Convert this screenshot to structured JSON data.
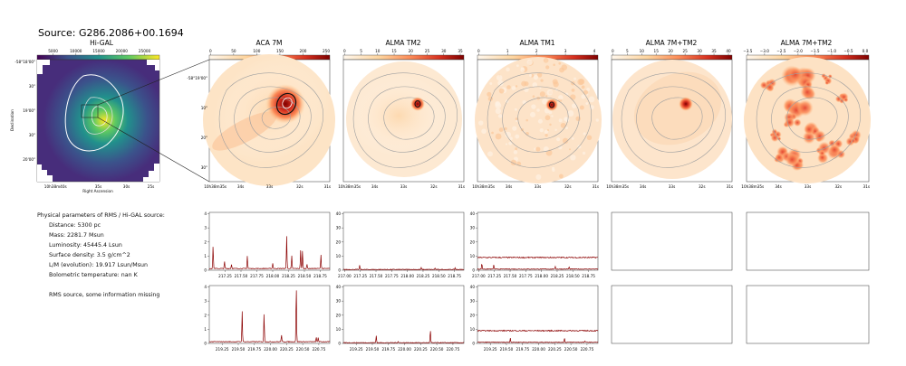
{
  "title": "Source: G286.2086+00.1694",
  "colors": {
    "viridis_dark": "#440154",
    "viridis_mid": "#21918c",
    "viridis_light": "#fde725",
    "spectrum_line": "#8b0000",
    "panel_bg": "#fdf3e6",
    "contour": "#a0a0a0"
  },
  "panels": [
    {
      "id": "higal",
      "title": "Hi-GAL",
      "colormap": "viridis",
      "colorbar_ticks": [
        "5000",
        "10000",
        "15000",
        "20000",
        "25000"
      ],
      "y_ticks": [
        "-58°18'00\"",
        "30\"",
        "19'00\"",
        "30\"",
        "20'00\""
      ],
      "x_ticks": [
        "10h38m40s",
        "35s",
        "30s",
        "25s"
      ],
      "xlabel": "Right Ascension",
      "ylabel": "Declination"
    },
    {
      "id": "aca7m",
      "title": "ACA 7M",
      "colormap": "OrRd",
      "colorbar_ticks": [
        "0",
        "50",
        "100",
        "150",
        "200",
        "250"
      ],
      "y_ticks": [
        "-58°19'00\"",
        "10\"",
        "20\"",
        "30\""
      ],
      "x_ticks": [
        "10h38m35s",
        "34s",
        "33s",
        "32s",
        "31s"
      ]
    },
    {
      "id": "tm2",
      "title": "ALMA TM2",
      "colormap": "OrRd",
      "colorbar_ticks": [
        "0",
        "5",
        "10",
        "15",
        "20",
        "25",
        "30",
        "35"
      ],
      "x_ticks": [
        "10h38m35s",
        "34s",
        "33s",
        "32s",
        "31s"
      ]
    },
    {
      "id": "tm1",
      "title": "ALMA TM1",
      "colormap": "OrRd",
      "colorbar_ticks": [
        "0",
        "1",
        "2",
        "3",
        "4"
      ],
      "x_ticks": [
        "10h38m35s",
        "34s",
        "33s",
        "32s",
        "31s"
      ]
    },
    {
      "id": "tm2_7m",
      "title": "ALMA 7M+TM2",
      "colormap": "OrRd",
      "colorbar_ticks": [
        "0",
        "5",
        "10",
        "15",
        "20",
        "25",
        "30",
        "35",
        "40"
      ],
      "x_ticks": [
        "10h38m35s",
        "34s",
        "33s",
        "32s",
        "31s"
      ]
    },
    {
      "id": "log_tm2_7m",
      "title": "ALMA 7M+TM2",
      "colormap": "OrRd",
      "colorbar_ticks": [
        "−3.5",
        "−3.0",
        "−2.5",
        "−2.0",
        "−1.5",
        "−1.0",
        "−0.5",
        "0.0"
      ],
      "x_ticks": [
        "10h38m35s",
        "34s",
        "33s",
        "32s",
        "31s"
      ]
    }
  ],
  "info": {
    "header": "Physical parameters of RMS / Hi-GAL source:",
    "lines": [
      "Distance: 5300 pc",
      "Mass: 2281.7 Msun",
      "Luminosity: 45445.4 Lsun",
      "Surface density: 3.5 g/cm^2",
      "L/M (evolution): 19.917 Lsun/Msun",
      "Bolometric temperature: nan K"
    ],
    "note": "RMS source, some information missing"
  },
  "chart_data": [
    {
      "type": "line",
      "panel": "aca7m_spw_low",
      "y_ticks": [
        "0",
        "1",
        "2",
        "3",
        "4"
      ],
      "ylim": [
        0,
        4.1
      ],
      "x_ticks": [
        "217.25",
        "217.50",
        "217.75",
        "218.00",
        "218.25",
        "218.50",
        "218.75"
      ],
      "xlim": [
        217.0,
        218.9
      ],
      "baseline": 0.12,
      "peaks": [
        [
          217.06,
          1.6
        ],
        [
          217.24,
          0.5
        ],
        [
          217.35,
          0.3
        ],
        [
          217.6,
          0.9
        ],
        [
          218.0,
          0.4
        ],
        [
          218.22,
          2.3
        ],
        [
          218.3,
          0.9
        ],
        [
          218.44,
          1.3
        ],
        [
          218.47,
          1.3
        ],
        [
          218.54,
          0.3
        ],
        [
          218.76,
          1.0
        ]
      ]
    },
    {
      "type": "line",
      "panel": "tm2_spw_low",
      "y_ticks": [
        "0",
        "10",
        "20",
        "30",
        "40"
      ],
      "ylim": [
        0,
        41
      ],
      "x_ticks": [
        "217.00",
        "217.25",
        "217.50",
        "217.75",
        "218.00",
        "218.25",
        "218.50",
        "218.75"
      ],
      "xlim": [
        216.98,
        218.9
      ],
      "baseline": 0.5,
      "peaks": [
        [
          217.24,
          3.0
        ],
        [
          218.22,
          1.2
        ],
        [
          218.44,
          1.0
        ],
        [
          218.76,
          1.2
        ]
      ]
    },
    {
      "type": "line",
      "panel": "tm1_spw_low",
      "y_ticks": [
        "0",
        "10",
        "20",
        "30",
        "40"
      ],
      "ylim": [
        0,
        41
      ],
      "x_ticks": [
        "217.00",
        "217.25",
        "217.50",
        "217.75",
        "218.00",
        "218.25",
        "218.50",
        "218.75"
      ],
      "xlim": [
        216.98,
        218.9
      ],
      "baseline": 0.8,
      "band_upper": 9.0,
      "peaks": [
        [
          217.05,
          4.0
        ],
        [
          217.24,
          3.0
        ],
        [
          218.22,
          2.0
        ],
        [
          218.44,
          1.5
        ]
      ]
    },
    {
      "type": "line",
      "panel": "aca7m_spw_high",
      "y_ticks": [
        "0",
        "1",
        "2",
        "3",
        "4"
      ],
      "ylim": [
        0,
        4.1
      ],
      "x_ticks": [
        "219.25",
        "219.50",
        "219.75",
        "220.00",
        "220.25",
        "220.50",
        "220.75"
      ],
      "xlim": [
        219.05,
        220.92
      ],
      "baseline": 0.12,
      "peaks": [
        [
          219.56,
          2.2
        ],
        [
          219.9,
          2.0
        ],
        [
          220.17,
          0.5
        ],
        [
          220.4,
          4.05
        ],
        [
          220.71,
          0.3
        ],
        [
          220.74,
          0.3
        ]
      ]
    },
    {
      "type": "line",
      "panel": "tm2_spw_high",
      "y_ticks": [
        "0",
        "10",
        "20",
        "30",
        "40"
      ],
      "ylim": [
        0,
        41
      ],
      "x_ticks": [
        "219.25",
        "219.50",
        "219.75",
        "220.00",
        "220.25",
        "220.50",
        "220.75"
      ],
      "xlim": [
        219.05,
        220.92
      ],
      "baseline": 0.5,
      "peaks": [
        [
          219.56,
          5.0
        ],
        [
          219.9,
          1.0
        ],
        [
          220.4,
          9.0
        ]
      ]
    },
    {
      "type": "line",
      "panel": "tm1_spw_high",
      "y_ticks": [
        "0",
        "10",
        "20",
        "30",
        "40"
      ],
      "ylim": [
        0,
        41
      ],
      "x_ticks": [
        "219.25",
        "219.50",
        "219.75",
        "220.00",
        "220.25",
        "220.50",
        "220.75"
      ],
      "xlim": [
        219.05,
        220.92
      ],
      "baseline": 0.8,
      "band_upper": 9.0,
      "peaks": [
        [
          219.56,
          3.0
        ],
        [
          220.4,
          3.0
        ],
        [
          220.72,
          1.0
        ]
      ]
    }
  ]
}
